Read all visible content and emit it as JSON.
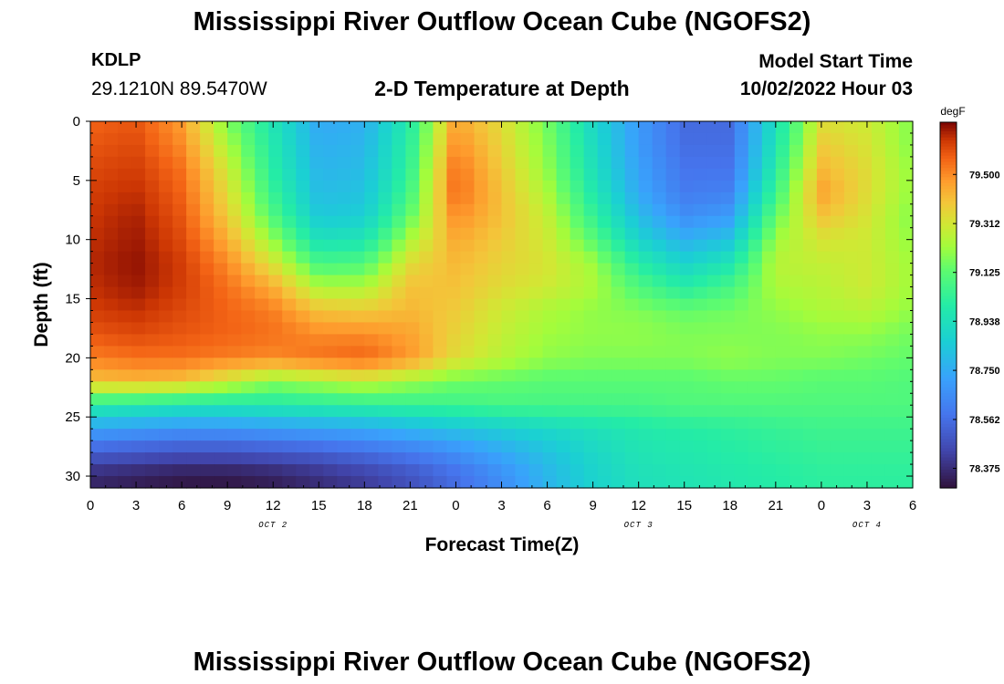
{
  "header": {
    "title": "Mississippi River Outflow Ocean Cube (NGOFS2)",
    "station_id": "KDLP",
    "coordinates": "29.1210N  89.5470W",
    "subtitle": "2-D Temperature at Depth",
    "model_start_label": "Model Start Time",
    "model_start_value": "10/02/2022 Hour 03"
  },
  "footer": {
    "title": "Mississippi River Outflow Ocean Cube (NGOFS2)"
  },
  "chart_data": {
    "type": "heatmap",
    "xlabel": "Forecast Time(Z)",
    "ylabel": "Depth (ft)",
    "x_range_hours": [
      0,
      54
    ],
    "y_range_ft": [
      0,
      31
    ],
    "y_reversed": true,
    "x_tick_labels": [
      "0",
      "3",
      "6",
      "9",
      "12",
      "15",
      "18",
      "21",
      "0",
      "3",
      "6",
      "9",
      "12",
      "15",
      "18",
      "21",
      "0",
      "3",
      "6"
    ],
    "y_tick_values": [
      0,
      5,
      10,
      15,
      20,
      25,
      30
    ],
    "date_labels": [
      {
        "label": "OCT 2",
        "hour": 12
      },
      {
        "label": "OCT 3",
        "hour": 36
      },
      {
        "label": "OCT 4",
        "hour": 51
      }
    ],
    "colorbar": {
      "units": "degF",
      "ticks": [
        "79.500",
        "79.312",
        "79.125",
        "78.938",
        "78.750",
        "78.562",
        "78.375"
      ],
      "tick_values": [
        79.5,
        79.312,
        79.125,
        78.938,
        78.75,
        78.562,
        78.375
      ],
      "range": [
        78.3,
        79.7
      ]
    },
    "grid_x_hours": [
      0,
      3,
      6,
      9,
      12,
      15,
      18,
      21,
      24,
      27,
      30,
      33,
      36,
      39,
      42,
      45,
      48,
      51,
      54
    ],
    "grid_depth_ft": [
      0,
      2,
      4,
      6,
      8,
      10,
      12,
      14,
      16,
      18,
      20,
      22,
      24,
      26,
      28,
      30
    ],
    "values_degF": [
      [
        79.56,
        79.58,
        79.47,
        79.18,
        78.96,
        78.74,
        78.76,
        79.0,
        79.46,
        79.34,
        79.16,
        78.9,
        78.7,
        78.55,
        78.55,
        78.94,
        79.33,
        79.3,
        79.18
      ],
      [
        79.58,
        79.6,
        79.5,
        79.24,
        78.98,
        78.76,
        78.78,
        79.02,
        79.5,
        79.36,
        79.18,
        78.92,
        78.7,
        78.56,
        78.56,
        78.96,
        79.38,
        79.32,
        79.18
      ],
      [
        79.6,
        79.62,
        79.54,
        79.3,
        79.0,
        78.78,
        78.8,
        79.04,
        79.54,
        79.38,
        79.2,
        78.94,
        78.72,
        78.58,
        78.58,
        79.0,
        79.42,
        79.34,
        79.2
      ],
      [
        79.62,
        79.64,
        79.56,
        79.34,
        79.04,
        78.8,
        78.82,
        79.08,
        79.55,
        79.4,
        79.24,
        78.98,
        78.74,
        78.6,
        78.62,
        79.06,
        79.46,
        79.34,
        79.2
      ],
      [
        79.63,
        79.66,
        79.58,
        79.38,
        79.1,
        78.84,
        78.86,
        79.14,
        79.5,
        79.4,
        79.28,
        79.04,
        78.8,
        78.66,
        78.7,
        79.14,
        79.4,
        79.32,
        79.18
      ],
      [
        79.64,
        79.67,
        79.6,
        79.44,
        79.2,
        78.94,
        78.96,
        79.24,
        79.45,
        79.38,
        79.3,
        79.12,
        78.88,
        78.76,
        78.82,
        79.22,
        79.32,
        79.3,
        79.2
      ],
      [
        79.65,
        79.68,
        79.62,
        79.5,
        79.32,
        79.08,
        79.1,
        79.34,
        79.42,
        79.36,
        79.32,
        79.22,
        79.0,
        78.88,
        78.96,
        79.26,
        79.28,
        79.3,
        79.22
      ],
      [
        79.64,
        79.67,
        79.62,
        79.54,
        79.44,
        79.24,
        79.24,
        79.4,
        79.4,
        79.34,
        79.3,
        79.24,
        79.1,
        79.0,
        79.08,
        79.24,
        79.26,
        79.3,
        79.22
      ],
      [
        79.62,
        79.64,
        79.6,
        79.56,
        79.52,
        79.4,
        79.38,
        79.42,
        79.38,
        79.3,
        79.24,
        79.2,
        79.18,
        79.14,
        79.16,
        79.2,
        79.24,
        79.26,
        79.2
      ],
      [
        79.58,
        79.6,
        79.58,
        79.56,
        79.54,
        79.5,
        79.5,
        79.46,
        79.36,
        79.28,
        79.22,
        79.2,
        79.2,
        79.18,
        79.18,
        79.18,
        79.2,
        79.2,
        79.16
      ],
      [
        79.52,
        79.54,
        79.54,
        79.52,
        79.5,
        79.54,
        79.56,
        79.48,
        79.34,
        79.26,
        79.2,
        79.18,
        79.18,
        79.18,
        79.2,
        79.18,
        79.18,
        79.16,
        79.14
      ],
      [
        79.4,
        79.42,
        79.4,
        79.3,
        79.2,
        79.24,
        79.28,
        79.22,
        79.16,
        79.14,
        79.12,
        79.12,
        79.12,
        79.12,
        79.14,
        79.14,
        79.12,
        79.12,
        79.1
      ],
      [
        79.0,
        78.98,
        78.96,
        78.96,
        78.98,
        79.0,
        79.02,
        79.04,
        79.06,
        79.08,
        79.08,
        79.08,
        79.08,
        79.1,
        79.1,
        79.1,
        79.1,
        79.1,
        79.1
      ],
      [
        78.72,
        78.7,
        78.68,
        78.68,
        78.7,
        78.72,
        78.74,
        78.78,
        78.82,
        78.86,
        78.9,
        78.94,
        78.98,
        79.0,
        79.02,
        79.04,
        79.06,
        79.06,
        79.06
      ],
      [
        78.52,
        78.5,
        78.48,
        78.48,
        78.5,
        78.52,
        78.56,
        78.6,
        78.66,
        78.74,
        78.82,
        78.9,
        78.96,
        78.98,
        79.0,
        79.02,
        79.04,
        79.04,
        79.04
      ],
      [
        78.36,
        78.34,
        78.32,
        78.32,
        78.34,
        78.38,
        78.42,
        78.48,
        78.56,
        78.66,
        78.78,
        78.88,
        78.94,
        78.96,
        78.98,
        79.0,
        79.02,
        79.02,
        79.02
      ]
    ]
  }
}
